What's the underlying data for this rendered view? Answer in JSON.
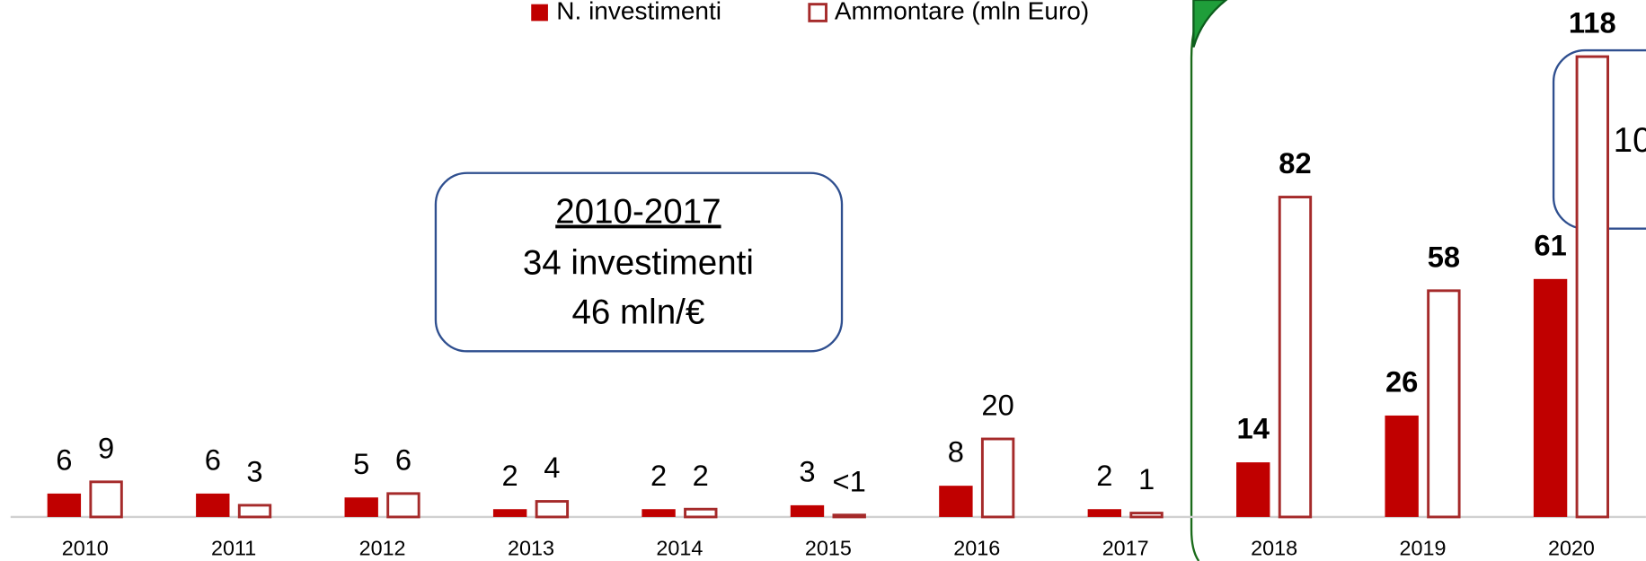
{
  "chart_data": {
    "type": "bar",
    "categories": [
      "2010",
      "2011",
      "2012",
      "2013",
      "2014",
      "2015",
      "2016",
      "2017",
      "2018",
      "2019",
      "2020"
    ],
    "series": [
      {
        "name": "N. investimenti",
        "color": "#c00000",
        "style": "filled",
        "values": [
          6,
          6,
          5,
          2,
          2,
          3,
          8,
          2,
          14,
          26,
          61
        ]
      },
      {
        "name": "Ammontare (mln Euro)",
        "color": "#a52a2a",
        "style": "outline",
        "values": [
          9,
          3,
          6,
          4,
          2,
          0.5,
          20,
          1,
          82,
          58,
          118
        ],
        "value_labels": [
          "9",
          "3",
          "6",
          "4",
          "2",
          "<1",
          "20",
          "1",
          "82",
          "58",
          "118"
        ]
      }
    ],
    "annotations": [
      {
        "title": "2010-2017",
        "lines": [
          "34 investimenti",
          "46 mln/€"
        ]
      },
      {
        "lines": [
          "10"
        ]
      }
    ]
  }
}
